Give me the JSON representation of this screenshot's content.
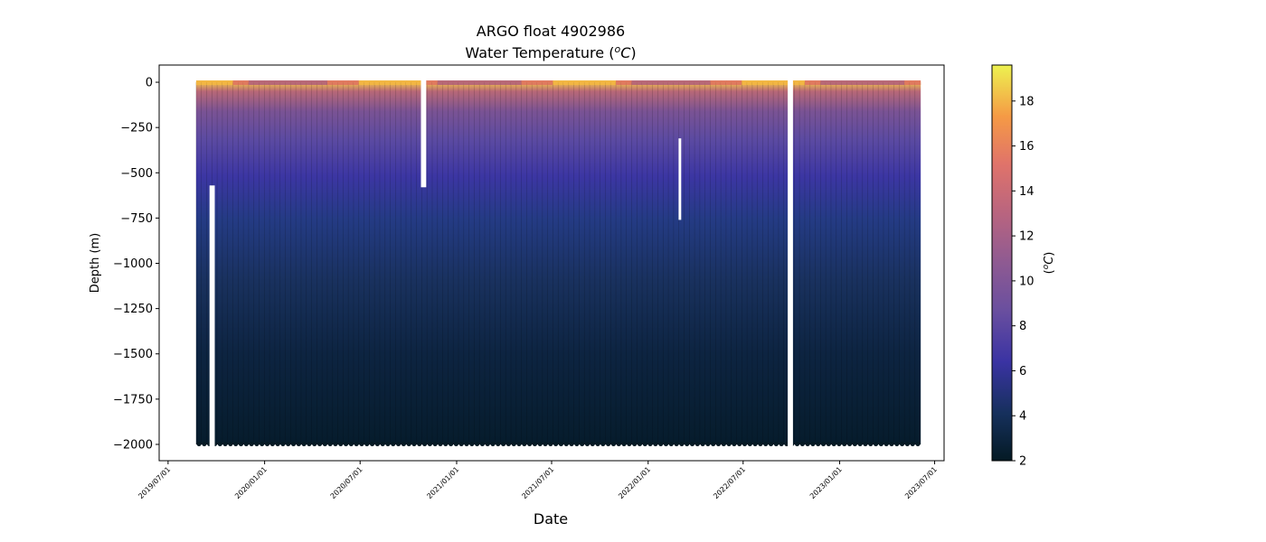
{
  "chart_data": {
    "type": "scatter",
    "title": "ARGO float 4902986",
    "subtitle": "Water Temperature (",
    "subtitle_var": "o",
    "subtitle_unit": "C",
    "subtitle_close": ")",
    "xlabel": "Date",
    "ylabel": "Depth (m)",
    "x_range": [
      "2019-06-14",
      "2023-07-19"
    ],
    "ylim": [
      -2090,
      95
    ],
    "y_ticks": [
      0,
      -250,
      -500,
      -750,
      -1000,
      -1250,
      -1500,
      -1750,
      -2000
    ],
    "x_ticks": [
      "2019/07/01",
      "2020/01/01",
      "2020/07/01",
      "2021/01/01",
      "2021/07/01",
      "2022/01/01",
      "2022/07/01",
      "2023/01/01",
      "2023/07/01"
    ],
    "colorbar": {
      "label_open": "(",
      "label_var": "o",
      "label_unit": "C",
      "label_close": ")",
      "range": [
        2,
        19.6
      ],
      "ticks": [
        2,
        4,
        6,
        8,
        10,
        12,
        14,
        16,
        18
      ]
    },
    "profiles": {
      "first_date": "2019-08-29",
      "last_date": "2023-06-03",
      "interval_days": 10,
      "max_depth": -2000,
      "gaps": [
        {
          "from": "2019-09-18",
          "to": "2019-09-28",
          "depth_from": -570,
          "depth_to": -2000
        },
        {
          "from": "2020-10-25",
          "to": "2020-11-04",
          "depth_from": 0,
          "depth_to": -580
        },
        {
          "from": "2022-02-28",
          "to": "2022-03-05",
          "depth_from": -310,
          "depth_to": -760
        },
        {
          "from": "2022-09-24",
          "to": "2022-10-04",
          "depth_from": 0,
          "depth_to": -2000
        }
      ]
    }
  }
}
